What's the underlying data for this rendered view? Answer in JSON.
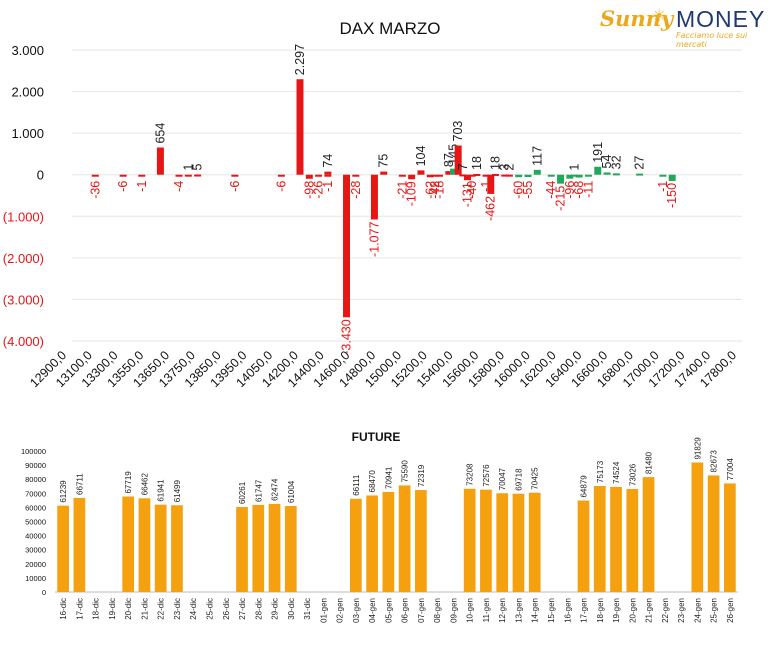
{
  "logo": {
    "brand_left": "Sunny",
    "brand_right": "MONEY",
    "tagline": "Facciamo luce sui mercati"
  },
  "colors": {
    "positive_bar": "#22a85a",
    "negative_bar": "#e81515",
    "negative_label": "#e81515",
    "positive_label": "#222222",
    "future_bar": "#f5a00f",
    "grid": "#e6e6e6"
  },
  "chart_data": [
    {
      "type": "bar",
      "title": "DAX MARZO",
      "xlabel": "",
      "ylabel": "",
      "ylim": [
        -4000,
        3000
      ],
      "y_ticks": [
        -4000,
        -3000,
        -2000,
        -1000,
        0,
        1000,
        2000,
        3000
      ],
      "y_tick_labels": [
        "(4.000)",
        "(3.000)",
        "(2.000)",
        "(1.000)",
        "0",
        "1.000",
        "2.000",
        "3.000"
      ],
      "x_tick_labels": [
        "12900,0",
        "13100,0",
        "13300,0",
        "13550,0",
        "13650,0",
        "13750,0",
        "13850,0",
        "13950,0",
        "14050,0",
        "14200,0",
        "14400,0",
        "14600,0",
        "14800,0",
        "15000,0",
        "15200,0",
        "15400,0",
        "15600,0",
        "15800,0",
        "16000,0",
        "16200,0",
        "16400,0",
        "16600,0",
        "16800,0",
        "17000,0",
        "17200,0",
        "17400,0",
        "17800,0"
      ],
      "x_slots": 72,
      "grid": true,
      "points": [
        {
          "slot": 2,
          "label": "-36",
          "value": -36,
          "color": "red"
        },
        {
          "slot": 5,
          "label": "-6",
          "value": -6,
          "color": "red"
        },
        {
          "slot": 7,
          "label": "-1",
          "value": -1,
          "color": "red"
        },
        {
          "slot": 9,
          "label": "654",
          "value": 654,
          "color": "red"
        },
        {
          "slot": 11,
          "label": "-4",
          "value": -4,
          "color": "red"
        },
        {
          "slot": 12,
          "label": "1",
          "value": 1,
          "color": "red"
        },
        {
          "slot": 13,
          "label": "5",
          "value": 5,
          "color": "red"
        },
        {
          "slot": 17,
          "label": "-6",
          "value": -6,
          "color": "red"
        },
        {
          "slot": 22,
          "label": "-6",
          "value": -6,
          "color": "red"
        },
        {
          "slot": 24,
          "label": "2.297",
          "value": 2297,
          "color": "red"
        },
        {
          "slot": 25,
          "label": "-98",
          "value": -98,
          "color": "red"
        },
        {
          "slot": 26,
          "label": "-26",
          "value": -26,
          "color": "red"
        },
        {
          "slot": 27,
          "label": "-1",
          "value": -1,
          "color": "red"
        },
        {
          "slot": 27,
          "label": "74",
          "value": 74,
          "color": "red"
        },
        {
          "slot": 29,
          "label": "-3.430",
          "value": -3430,
          "color": "red"
        },
        {
          "slot": 30,
          "label": "-28",
          "value": -28,
          "color": "red"
        },
        {
          "slot": 32,
          "label": "-1.077",
          "value": -1077,
          "color": "red"
        },
        {
          "slot": 33,
          "label": "75",
          "value": 75,
          "color": "red"
        },
        {
          "slot": 35,
          "label": "-21",
          "value": -21,
          "color": "red"
        },
        {
          "slot": 36,
          "label": "-109",
          "value": -109,
          "color": "red"
        },
        {
          "slot": 37,
          "label": "104",
          "value": 104,
          "color": "red"
        },
        {
          "slot": 38,
          "label": "-62",
          "value": -62,
          "color": "red"
        },
        {
          "slot": 38.5,
          "label": "-42",
          "value": -42,
          "color": "red"
        },
        {
          "slot": 39,
          "label": "-18",
          "value": -18,
          "color": "red"
        },
        {
          "slot": 40,
          "label": "87",
          "value": 87,
          "color": "red"
        },
        {
          "slot": 40.5,
          "label": "145",
          "value": 145,
          "color": "green"
        },
        {
          "slot": 41,
          "label": "703",
          "value": 703,
          "color": "red"
        },
        {
          "slot": 41.5,
          "label": "7",
          "value": 7,
          "color": "red"
        },
        {
          "slot": 42,
          "label": "-131",
          "value": -131,
          "color": "red"
        },
        {
          "slot": 42.5,
          "label": "-40",
          "value": -40,
          "color": "red"
        },
        {
          "slot": 43,
          "label": "18",
          "value": 18,
          "color": "red"
        },
        {
          "slot": 44,
          "label": "-1",
          "value": -1,
          "color": "red"
        },
        {
          "slot": 44.5,
          "label": "-462",
          "value": -462,
          "color": "red"
        },
        {
          "slot": 45,
          "label": "18",
          "value": 18,
          "color": "red"
        },
        {
          "slot": 46,
          "label": "3",
          "value": 3,
          "color": "red"
        },
        {
          "slot": 46.5,
          "label": "2",
          "value": 2,
          "color": "red"
        },
        {
          "slot": 47.5,
          "label": "-60",
          "value": -60,
          "color": "green"
        },
        {
          "slot": 48.5,
          "label": "-55",
          "value": -55,
          "color": "green"
        },
        {
          "slot": 49.5,
          "label": "117",
          "value": 117,
          "color": "green"
        },
        {
          "slot": 51,
          "label": "-44",
          "value": -44,
          "color": "green"
        },
        {
          "slot": 52,
          "label": "-215",
          "value": -215,
          "color": "green"
        },
        {
          "slot": 53,
          "label": "-96",
          "value": -96,
          "color": "green"
        },
        {
          "slot": 53.5,
          "label": "1",
          "value": 1,
          "color": "green"
        },
        {
          "slot": 54,
          "label": "-68",
          "value": -68,
          "color": "green"
        },
        {
          "slot": 55,
          "label": "-11",
          "value": -11,
          "color": "green"
        },
        {
          "slot": 56,
          "label": "191",
          "value": 191,
          "color": "green"
        },
        {
          "slot": 57,
          "label": "54",
          "value": 54,
          "color": "green"
        },
        {
          "slot": 58,
          "label": "32",
          "value": 32,
          "color": "green"
        },
        {
          "slot": 60.5,
          "label": "27",
          "value": 27,
          "color": "green"
        },
        {
          "slot": 63,
          "label": "-1",
          "value": -1,
          "color": "green"
        },
        {
          "slot": 64,
          "label": "-150",
          "value": -150,
          "color": "green"
        }
      ]
    },
    {
      "type": "bar",
      "title": "FUTURE",
      "xlabel": "",
      "ylabel": "",
      "ylim": [
        0,
        100000
      ],
      "y_ticks": [
        0,
        10000,
        20000,
        30000,
        40000,
        50000,
        60000,
        70000,
        80000,
        90000,
        100000
      ],
      "grid": false,
      "categories": [
        "16-dic",
        "17-dic",
        "18-dic",
        "19-dic",
        "20-dic",
        "21-dic",
        "22-dic",
        "23-dic",
        "24-dic",
        "25-dic",
        "26-dic",
        "27-dic",
        "28-dic",
        "29-dic",
        "30-dic",
        "31-dic",
        "01-gen",
        "02-gen",
        "03-gen",
        "04-gen",
        "05-gen",
        "06-gen",
        "07-gen",
        "08-gen",
        "09-gen",
        "10-gen",
        "11-gen",
        "12-gen",
        "13-gen",
        "14-gen",
        "15-gen",
        "16-gen",
        "17-gen",
        "18-gen",
        "19-gen",
        "20-gen",
        "21-gen",
        "22-gen",
        "23-gen",
        "24-gen",
        "25-gen",
        "26-gen"
      ],
      "values": [
        61239,
        66711,
        null,
        null,
        67719,
        66462,
        61941,
        61499,
        null,
        null,
        null,
        60261,
        61747,
        62474,
        61004,
        null,
        null,
        null,
        66111,
        68470,
        70941,
        75590,
        72319,
        null,
        null,
        73208,
        72576,
        70047,
        69718,
        70425,
        null,
        null,
        64879,
        75173,
        74524,
        73026,
        81480,
        null,
        null,
        91829,
        82673,
        77004
      ]
    }
  ]
}
